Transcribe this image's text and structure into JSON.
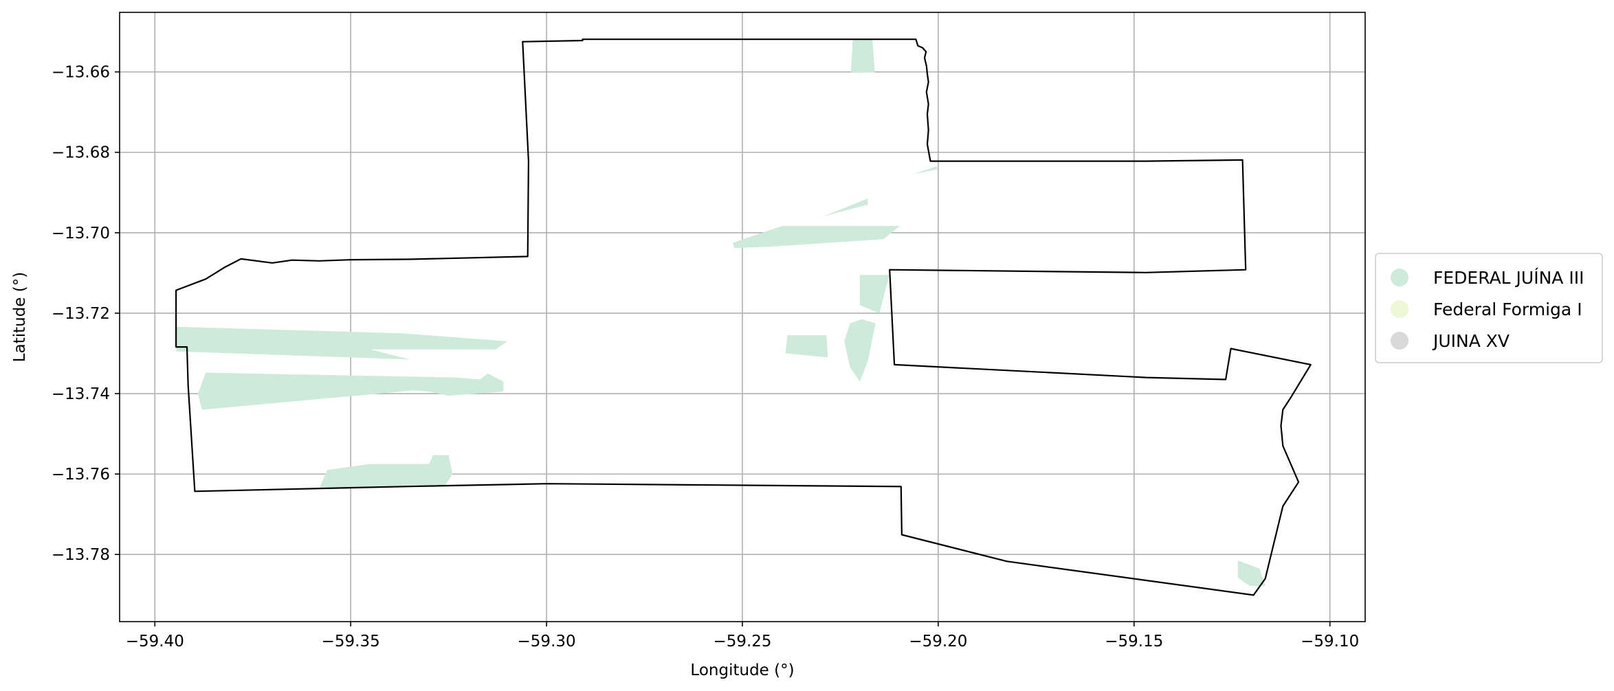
{
  "chart_data": {
    "type": "map",
    "xlabel": "Longitude (°)",
    "ylabel": "Latitude (°)",
    "xlim": [
      -59.409,
      -59.091
    ],
    "ylim": [
      -13.7967,
      -13.6452
    ],
    "x_ticks": [
      -59.4,
      -59.35,
      -59.3,
      -59.25,
      -59.2,
      -59.15,
      -59.1
    ],
    "x_tick_labels": [
      "−59.40",
      "−59.35",
      "−59.30",
      "−59.25",
      "−59.20",
      "−59.15",
      "−59.10"
    ],
    "y_ticks": [
      -13.66,
      -13.68,
      -13.7,
      -13.72,
      -13.74,
      -13.76,
      -13.78
    ],
    "y_tick_labels": [
      "−13.66",
      "−13.68",
      "−13.70",
      "−13.72",
      "−13.74",
      "−13.76",
      "−13.78"
    ],
    "grid": true,
    "legend_position": "right",
    "legend": [
      {
        "label": "FEDERAL JUÍNA III",
        "color": "#cdeadb"
      },
      {
        "label": "Federal Formiga I",
        "color": "#eef7d7"
      },
      {
        "label": "JUINA XV",
        "color": "#d9d9d9"
      }
    ],
    "boundary_color": "#000000",
    "boundary": [
      [
        -59.3061,
        -13.6525
      ],
      [
        -59.2908,
        -13.6522
      ],
      [
        -59.2908,
        -13.6519
      ],
      [
        -59.2152,
        -13.6519
      ],
      [
        -59.2057,
        -13.6519
      ],
      [
        -59.2052,
        -13.6535
      ],
      [
        -59.204,
        -13.654
      ],
      [
        -59.2031,
        -13.655
      ],
      [
        -59.2035,
        -13.6565
      ],
      [
        -59.203,
        -13.6585
      ],
      [
        -59.2028,
        -13.6605
      ],
      [
        -59.2025,
        -13.6625
      ],
      [
        -59.203,
        -13.665
      ],
      [
        -59.2025,
        -13.668
      ],
      [
        -59.2028,
        -13.6705
      ],
      [
        -59.2025,
        -13.6745
      ],
      [
        -59.2028,
        -13.678
      ],
      [
        -59.202,
        -13.6822
      ],
      [
        -59.147,
        -13.6822
      ],
      [
        -59.1223,
        -13.6819
      ],
      [
        -59.1215,
        -13.7092
      ],
      [
        -59.147,
        -13.7099
      ],
      [
        -59.2124,
        -13.7092
      ],
      [
        -59.2112,
        -13.7328
      ],
      [
        -59.1469,
        -13.736
      ],
      [
        -59.1266,
        -13.7365
      ],
      [
        -59.1253,
        -13.7288
      ],
      [
        -59.1049,
        -13.7328
      ],
      [
        -59.11,
        -13.741
      ],
      [
        -59.112,
        -13.744
      ],
      [
        -59.1125,
        -13.748
      ],
      [
        -59.112,
        -13.753
      ],
      [
        -59.108,
        -13.762
      ],
      [
        -59.11,
        -13.765
      ],
      [
        -59.112,
        -13.768
      ],
      [
        -59.113,
        -13.772
      ],
      [
        -59.115,
        -13.78
      ],
      [
        -59.1165,
        -13.786
      ],
      [
        -59.1195,
        -13.7901
      ],
      [
        -59.1825,
        -13.7817
      ],
      [
        -59.2093,
        -13.7751
      ],
      [
        -59.2095,
        -13.7631
      ],
      [
        -59.3,
        -13.7624
      ],
      [
        -59.3361,
        -13.7631
      ],
      [
        -59.3898,
        -13.7643
      ],
      [
        -59.3915,
        -13.738
      ],
      [
        -59.3918,
        -13.7284
      ],
      [
        -59.3946,
        -13.7284
      ],
      [
        -59.3946,
        -13.7143
      ],
      [
        -59.387,
        -13.7115
      ],
      [
        -59.382,
        -13.7085
      ],
      [
        -59.378,
        -13.7065
      ],
      [
        -59.37,
        -13.7075
      ],
      [
        -59.365,
        -13.7068
      ],
      [
        -59.358,
        -13.707
      ],
      [
        -59.3498,
        -13.7067
      ],
      [
        -59.3352,
        -13.7066
      ],
      [
        -59.3048,
        -13.7059
      ],
      [
        -59.3046,
        -13.6822
      ]
    ],
    "parcels": [
      {
        "name": "FEDERAL JUÍNA III",
        "points": [
          [
            -59.2218,
            -13.6519
          ],
          [
            -59.2168,
            -13.6519
          ],
          [
            -59.2162,
            -13.6601
          ],
          [
            -59.2223,
            -13.6603
          ]
        ]
      },
      {
        "name": "FEDERAL JUÍNA III",
        "points": [
          [
            -59.2005,
            -13.6835
          ],
          [
            -59.2065,
            -13.6855
          ],
          [
            -59.2,
            -13.6842
          ]
        ]
      },
      {
        "name": "FEDERAL JUÍNA III",
        "points": [
          [
            -59.218,
            -13.6915
          ],
          [
            -59.2295,
            -13.696
          ],
          [
            -59.218,
            -13.693
          ]
        ]
      },
      {
        "name": "FEDERAL JUÍNA III",
        "points": [
          [
            -59.2398,
            -13.6983
          ],
          [
            -59.2098,
            -13.6983
          ],
          [
            -59.214,
            -13.7016
          ],
          [
            -59.2435,
            -13.7035
          ],
          [
            -59.252,
            -13.7038
          ],
          [
            -59.2525,
            -13.7025
          ]
        ]
      },
      {
        "name": "FEDERAL JUÍNA III",
        "points": [
          [
            -59.22,
            -13.7105
          ],
          [
            -59.2125,
            -13.7105
          ],
          [
            -59.215,
            -13.72
          ],
          [
            -59.22,
            -13.718
          ]
        ]
      },
      {
        "name": "FEDERAL JUÍNA III",
        "points": [
          [
            -59.2385,
            -13.7255
          ],
          [
            -59.2285,
            -13.7255
          ],
          [
            -59.2282,
            -13.731
          ],
          [
            -59.239,
            -13.73
          ]
        ]
      },
      {
        "name": "FEDERAL JUÍNA III",
        "points": [
          [
            -59.2195,
            -13.7215
          ],
          [
            -59.216,
            -13.7225
          ],
          [
            -59.218,
            -13.732
          ],
          [
            -59.22,
            -13.737
          ],
          [
            -59.2225,
            -13.7335
          ],
          [
            -59.224,
            -13.727
          ],
          [
            -59.2225,
            -13.7225
          ]
        ]
      },
      {
        "name": "FEDERAL JUÍNA III",
        "points": [
          [
            -59.3945,
            -13.7234
          ],
          [
            -59.337,
            -13.725
          ],
          [
            -59.31,
            -13.727
          ],
          [
            -59.313,
            -13.729
          ],
          [
            -59.345,
            -13.729
          ],
          [
            -59.335,
            -13.7315
          ],
          [
            -59.3945,
            -13.7295
          ]
        ]
      },
      {
        "name": "FEDERAL JUÍNA III",
        "points": [
          [
            -59.387,
            -13.7348
          ],
          [
            -59.323,
            -13.736
          ],
          [
            -59.317,
            -13.7365
          ],
          [
            -59.315,
            -13.735
          ],
          [
            -59.311,
            -13.737
          ],
          [
            -59.311,
            -13.7395
          ],
          [
            -59.318,
            -13.74
          ],
          [
            -59.325,
            -13.7405
          ],
          [
            -59.33,
            -13.7395
          ],
          [
            -59.334,
            -13.7392
          ],
          [
            -59.345,
            -13.7402
          ],
          [
            -59.388,
            -13.744
          ],
          [
            -59.389,
            -13.74
          ]
        ]
      },
      {
        "name": "FEDERAL JUÍNA III",
        "points": [
          [
            -59.329,
            -13.7553
          ],
          [
            -59.325,
            -13.7553
          ],
          [
            -59.324,
            -13.76
          ],
          [
            -59.326,
            -13.763
          ],
          [
            -59.358,
            -13.7635
          ],
          [
            -59.356,
            -13.759
          ],
          [
            -59.345,
            -13.7575
          ],
          [
            -59.33,
            -13.7575
          ]
        ]
      },
      {
        "name": "FEDERAL JUÍNA III",
        "points": [
          [
            -59.1235,
            -13.7815
          ],
          [
            -59.118,
            -13.7835
          ],
          [
            -59.1165,
            -13.7878
          ],
          [
            -59.1205,
            -13.7878
          ],
          [
            -59.1235,
            -13.7858
          ]
        ]
      }
    ]
  }
}
